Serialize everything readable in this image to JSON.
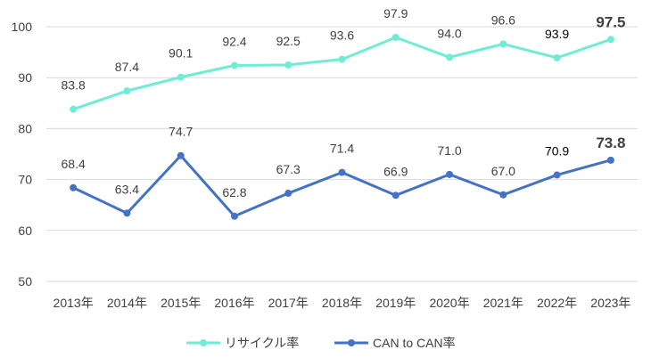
{
  "chart_data": {
    "type": "line",
    "title": "",
    "xlabel": "",
    "ylabel": "",
    "categories": [
      "2013年",
      "2014年",
      "2015年",
      "2016年",
      "2017年",
      "2018年",
      "2019年",
      "2020年",
      "2021年",
      "2022年",
      "2023年"
    ],
    "ylim": [
      50,
      100
    ],
    "yticks": [
      50,
      60,
      70,
      80,
      90,
      100
    ],
    "grid": true,
    "legend_position": "bottom",
    "highlight_color": "#FF0000",
    "series": [
      {
        "name": "リサイクル率",
        "color": "#6EEDD4",
        "values": [
          83.8,
          87.4,
          90.1,
          92.4,
          92.5,
          93.6,
          97.9,
          94.0,
          96.6,
          93.9,
          97.5
        ],
        "labels": [
          "83.8",
          "87.4",
          "90.1",
          "92.4",
          "92.5",
          "93.6",
          "97.9",
          "94.0",
          "96.6",
          "93.9",
          "97.5"
        ]
      },
      {
        "name": "CAN to CAN率",
        "color": "#4472C4",
        "values": [
          68.4,
          63.4,
          74.7,
          62.8,
          67.3,
          71.4,
          66.9,
          71.0,
          67.0,
          70.9,
          73.8
        ],
        "labels": [
          "68.4",
          "63.4",
          "74.7",
          "62.8",
          "67.3",
          "71.4",
          "66.9",
          "71.0",
          "67.0",
          "70.9",
          "73.8"
        ]
      }
    ]
  }
}
